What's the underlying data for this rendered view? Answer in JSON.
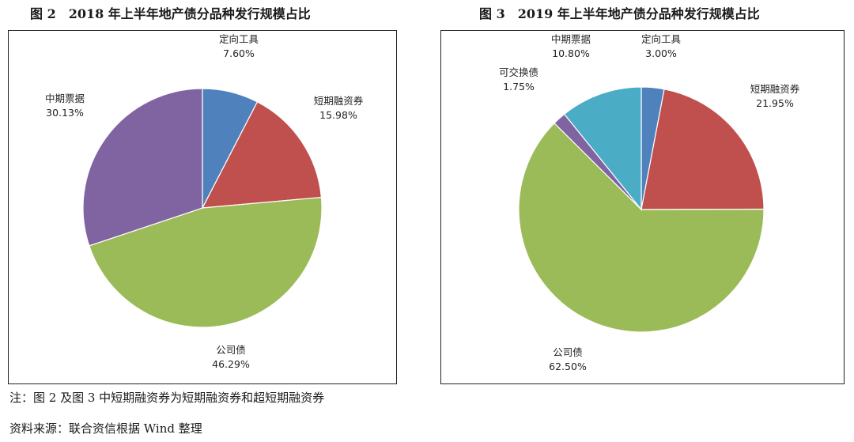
{
  "chart_data": [
    {
      "type": "pie",
      "title": "图 2　2018 年上半年地产债分品种发行规模占比",
      "slices": [
        {
          "label": "定向工具",
          "value": 7.6,
          "value_label": "7.60%",
          "color": "#4f81bd"
        },
        {
          "label": "短期融资券",
          "value": 15.98,
          "value_label": "15.98%",
          "color": "#c0504d"
        },
        {
          "label": "公司债",
          "value": 46.29,
          "value_label": "46.29%",
          "color": "#9bbb59"
        },
        {
          "label": "中期票据",
          "value": 30.13,
          "value_label": "30.13%",
          "color": "#8064a2"
        }
      ],
      "start": "12 o'clock",
      "direction": "clockwise",
      "legend": "none"
    },
    {
      "type": "pie",
      "title": "图 3　2019 年上半年地产债分品种发行规模占比",
      "slices": [
        {
          "label": "定向工具",
          "value": 3.0,
          "value_label": "3.00%",
          "color": "#4f81bd"
        },
        {
          "label": "短期融资券",
          "value": 21.95,
          "value_label": "21.95%",
          "color": "#c0504d"
        },
        {
          "label": "公司债",
          "value": 62.5,
          "value_label": "62.50%",
          "color": "#9bbb59"
        },
        {
          "label": "可交换债",
          "value": 1.75,
          "value_label": "1.75%",
          "color": "#8064a2"
        },
        {
          "label": "中期票据",
          "value": 10.8,
          "value_label": "10.80%",
          "color": "#4bacc6"
        }
      ],
      "start": "12 o'clock",
      "direction": "clockwise",
      "legend": "none"
    }
  ],
  "notes": {
    "note": "注：图 2 及图 3 中短期融资券为短期融资券和超短期融资券",
    "source": "资料来源：联合资信根据 Wind 整理"
  }
}
